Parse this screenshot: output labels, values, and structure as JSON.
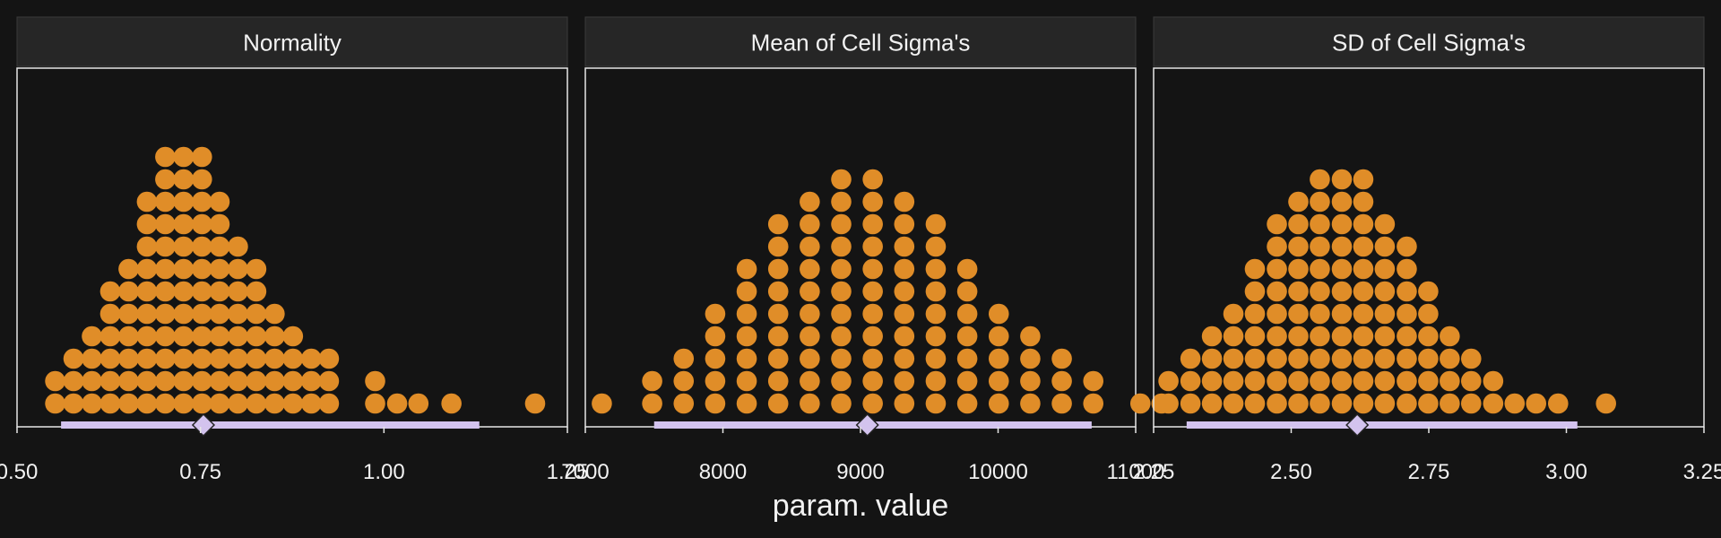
{
  "xlabel": "param. value",
  "colors": {
    "background": "#141414",
    "strip": "#262626",
    "panel_border": "#e6e6e6",
    "dot": "#e08d28",
    "interval": "#d3c3ee",
    "text": "#f2f2f2"
  },
  "chart_data": [
    {
      "type": "dotplot",
      "title": "Normality",
      "xlim": [
        0.5,
        1.25
      ],
      "xticks": [
        0.5,
        0.75,
        1.0,
        1.25
      ],
      "tick_labels": [
        "0.50",
        "0.75",
        "1.00",
        "1.25"
      ],
      "bin_width": 0.0247,
      "dots": [
        {
          "x": 0.552,
          "count": 2
        },
        {
          "x": 0.577,
          "count": 3
        },
        {
          "x": 0.602,
          "count": 4
        },
        {
          "x": 0.627,
          "count": 6
        },
        {
          "x": 0.652,
          "count": 7
        },
        {
          "x": 0.677,
          "count": 10
        },
        {
          "x": 0.702,
          "count": 12
        },
        {
          "x": 0.727,
          "count": 12
        },
        {
          "x": 0.752,
          "count": 12
        },
        {
          "x": 0.776,
          "count": 10
        },
        {
          "x": 0.801,
          "count": 8
        },
        {
          "x": 0.826,
          "count": 7
        },
        {
          "x": 0.851,
          "count": 5
        },
        {
          "x": 0.876,
          "count": 4
        },
        {
          "x": 0.901,
          "count": 3
        },
        {
          "x": 0.925,
          "count": 3
        },
        {
          "x": 0.988,
          "count": 2
        },
        {
          "x": 1.018,
          "count": 1
        },
        {
          "x": 1.047,
          "count": 1
        },
        {
          "x": 1.092,
          "count": 1
        },
        {
          "x": 1.206,
          "count": 1
        }
      ],
      "interval": [
        0.56,
        1.13
      ],
      "point": 0.754
    },
    {
      "type": "dotplot",
      "title": "Mean of Cell Sigma's",
      "xlim": [
        7000,
        11000
      ],
      "xticks": [
        7000,
        8000,
        9000,
        10000,
        11000
      ],
      "tick_labels": [
        "7000",
        "8000",
        "9000",
        "10000",
        "11000"
      ],
      "bin_width": 229,
      "dots": [
        {
          "x": 7120,
          "count": 1
        },
        {
          "x": 7486,
          "count": 2
        },
        {
          "x": 7715,
          "count": 3
        },
        {
          "x": 7944,
          "count": 5
        },
        {
          "x": 8173,
          "count": 7
        },
        {
          "x": 8402,
          "count": 9
        },
        {
          "x": 8631,
          "count": 10
        },
        {
          "x": 8860,
          "count": 11
        },
        {
          "x": 9089,
          "count": 11
        },
        {
          "x": 9318,
          "count": 10
        },
        {
          "x": 9547,
          "count": 9
        },
        {
          "x": 9776,
          "count": 7
        },
        {
          "x": 10005,
          "count": 5
        },
        {
          "x": 10234,
          "count": 4
        },
        {
          "x": 10463,
          "count": 3
        },
        {
          "x": 10692,
          "count": 2
        },
        {
          "x": 11188,
          "count": 1
        }
      ],
      "interval": [
        7500,
        10680
      ],
      "point": 9050
    },
    {
      "type": "dotplot",
      "title": "SD of Cell Sigma's",
      "xlim": [
        2.25,
        3.25
      ],
      "xticks": [
        2.25,
        2.5,
        2.75,
        3.0,
        3.25
      ],
      "tick_labels": [
        "2.25",
        "2.50",
        "2.75",
        "3.00",
        "3.25"
      ],
      "bin_width": 0.0393,
      "dots": [
        {
          "x": 2.226,
          "count": 1
        },
        {
          "x": 2.277,
          "count": 2
        },
        {
          "x": 2.317,
          "count": 3
        },
        {
          "x": 2.356,
          "count": 4
        },
        {
          "x": 2.395,
          "count": 5
        },
        {
          "x": 2.434,
          "count": 7
        },
        {
          "x": 2.474,
          "count": 9
        },
        {
          "x": 2.513,
          "count": 10
        },
        {
          "x": 2.552,
          "count": 11
        },
        {
          "x": 2.592,
          "count": 11
        },
        {
          "x": 2.631,
          "count": 11
        },
        {
          "x": 2.67,
          "count": 9
        },
        {
          "x": 2.71,
          "count": 8
        },
        {
          "x": 2.749,
          "count": 6
        },
        {
          "x": 2.788,
          "count": 4
        },
        {
          "x": 2.827,
          "count": 3
        },
        {
          "x": 2.867,
          "count": 2
        },
        {
          "x": 2.906,
          "count": 1
        },
        {
          "x": 2.945,
          "count": 1
        },
        {
          "x": 2.985,
          "count": 1
        },
        {
          "x": 3.072,
          "count": 1
        }
      ],
      "interval": [
        2.31,
        3.02
      ],
      "point": 2.62
    }
  ]
}
